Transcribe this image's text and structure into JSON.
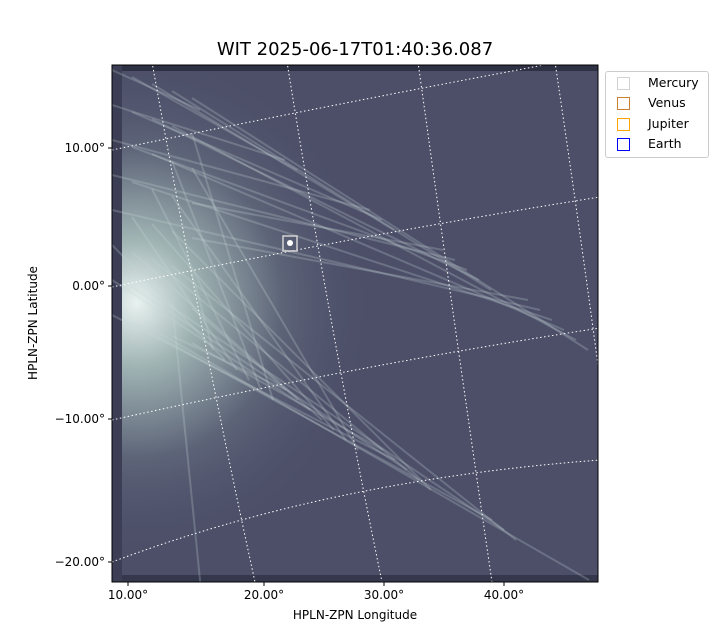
{
  "chart_data": {
    "type": "image",
    "title": "WIT 2025-06-17T01:40:36.087",
    "xlabel": "HPLN-ZPN Longitude",
    "ylabel": "HPLN-ZPN Latitude",
    "xticks": [
      "10.00°",
      "20.00°",
      "30.00°",
      "40.00°"
    ],
    "yticks": [
      "10.00°",
      "0.00°",
      "−10.00°",
      "−20.00°"
    ],
    "grid": true,
    "colormap": "bone-like grayscale",
    "legend_position": "outside-top-right",
    "legend": [
      {
        "name": "Mercury",
        "color": "#d3d3d3"
      },
      {
        "name": "Venus",
        "color": "#cd7f32"
      },
      {
        "name": "Jupiter",
        "color": "#ffa500"
      },
      {
        "name": "Earth",
        "color": "#0000ff"
      }
    ]
  }
}
